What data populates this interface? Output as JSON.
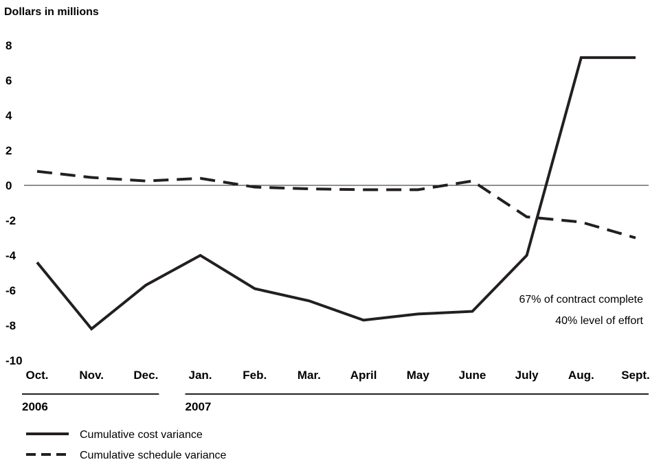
{
  "chart_data": {
    "type": "line",
    "ylabel": "Dollars in millions",
    "ylim": [
      -10,
      8
    ],
    "yticks": [
      "8",
      "6",
      "4",
      "2",
      "0",
      "-2",
      "-4",
      "-6",
      "-8",
      "-10"
    ],
    "ytick_values": [
      8,
      6,
      4,
      2,
      0,
      -2,
      -4,
      -6,
      -8,
      -10
    ],
    "categories": [
      "Oct.",
      "Nov.",
      "Dec.",
      "Jan.",
      "Feb.",
      "Mar.",
      "April",
      "May",
      "June",
      "July",
      "Aug.",
      "Sept."
    ],
    "years": [
      {
        "label": "2006",
        "from": 0,
        "to": 2
      },
      {
        "label": "2007",
        "from": 3,
        "to": 11
      }
    ],
    "series": [
      {
        "name": "Cumulative cost variance",
        "style": "solid",
        "values": [
          -4.4,
          -8.2,
          -5.7,
          -4.0,
          -5.9,
          -6.6,
          -7.7,
          -7.35,
          -7.2,
          -4.0,
          7.3,
          7.3
        ]
      },
      {
        "name": "Cumulative schedule variance",
        "style": "dashed",
        "values": [
          0.8,
          0.45,
          0.25,
          0.4,
          -0.1,
          -0.2,
          -0.25,
          -0.25,
          0.25,
          -1.8,
          -2.1,
          -3.0
        ]
      }
    ],
    "annotations": [
      "67% of contract complete",
      "40% level of effort"
    ],
    "zero_line": true,
    "legend_position": "bottom-left",
    "colors": {
      "ink": "#231f20",
      "axis": "#231f20"
    }
  }
}
